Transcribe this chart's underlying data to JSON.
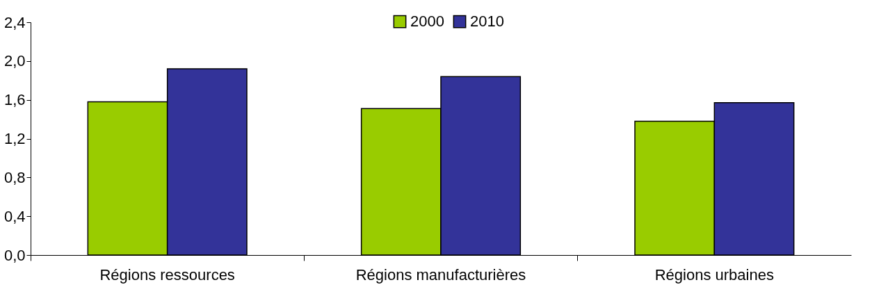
{
  "chart_data": {
    "type": "bar",
    "categories": [
      "Régions ressources",
      "Régions manufacturières",
      "Régions urbaines"
    ],
    "series": [
      {
        "name": "2000",
        "color": "#99cc00",
        "values": [
          1.58,
          1.51,
          1.38
        ]
      },
      {
        "name": "2010",
        "color": "#333399",
        "values": [
          1.92,
          1.84,
          1.57
        ]
      }
    ],
    "ylim": [
      0,
      2.4
    ],
    "yticks": [
      {
        "value": 0,
        "label": "0,0"
      },
      {
        "value": 0.4,
        "label": "0,4"
      },
      {
        "value": 0.8,
        "label": "0,8"
      },
      {
        "value": 1.2,
        "label": "1,2"
      },
      {
        "value": 1.6,
        "label": "1,6"
      },
      {
        "value": 2.0,
        "label": "2,0"
      },
      {
        "value": 2.4,
        "label": "2,4"
      }
    ],
    "grid": false,
    "legend": "top"
  }
}
